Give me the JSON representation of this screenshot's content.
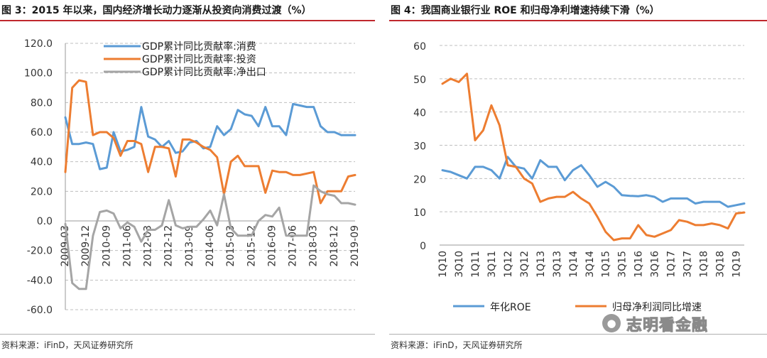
{
  "left": {
    "title": "图 3：2015 年以来，国内经济增长动力逐渐从投资向消费过渡（%）",
    "source": "资料来源：iFinD，天风证券研究所"
  },
  "right": {
    "title": "图 4：我国商业银行业 ROE 和归母净利增速持续下滑（%）",
    "source": "资料来源：iFinD，天风证券研究所"
  },
  "watermark": {
    "icon": "wechat-icon",
    "text": "志明看金融"
  },
  "colors": {
    "blue": "#5b9bd5",
    "orange": "#ed7d31",
    "gray": "#a5a5a5",
    "grid": "#bfbfbf",
    "title_rule": "#c0272d"
  },
  "chart_data": [
    {
      "type": "line",
      "ylim": [
        -60,
        120
      ],
      "yticks": [
        "120.0",
        "100.0",
        "80.0",
        "60.0",
        "40.0",
        "20.0",
        "0.0",
        "-20.0",
        "-40.0",
        "-60.0"
      ],
      "xtick_labels": [
        "2009-03",
        "2009-12",
        "2010-09",
        "2011-06",
        "2012-03",
        "2012-12",
        "2013-09",
        "2014-06",
        "2015-03",
        "2015-12",
        "2016-09",
        "2017-06",
        "2018-03",
        "2018-12",
        "2019-09"
      ],
      "legend_position": "top",
      "grid": "horizontal dashed",
      "x_count": 43,
      "series": [
        {
          "name": "GDP累计同比贡献率:消费",
          "color": "#5b9bd5",
          "values": [
            70,
            52,
            52,
            53,
            52,
            35,
            36,
            60,
            47,
            48,
            50,
            77,
            57,
            55,
            50,
            54,
            46,
            47,
            53,
            54,
            49,
            50,
            64,
            58,
            62,
            75,
            72,
            71,
            64,
            77,
            64,
            64,
            58,
            79,
            78,
            77,
            77,
            64,
            60,
            60,
            58,
            58,
            58
          ]
        },
        {
          "name": "GDP累计同比贡献率:投资",
          "color": "#ed7d31",
          "values": [
            33,
            90,
            95,
            94,
            58,
            60,
            60,
            56,
            44,
            54,
            54,
            52,
            33,
            50,
            50,
            49,
            30,
            55,
            55,
            53,
            50,
            48,
            43,
            18,
            40,
            44,
            37,
            37,
            37,
            19,
            34,
            33,
            33,
            31,
            31,
            32,
            33,
            12,
            20,
            20,
            20,
            30,
            31
          ]
        },
        {
          "name": "GDP累计同比贡献率:净出口",
          "color": "#a5a5a5",
          "values": [
            -2,
            -42,
            -46,
            -46,
            -10,
            6,
            7,
            5,
            -5,
            -1,
            -4,
            -14,
            -6,
            -6,
            -3,
            14,
            -3,
            -5,
            -4,
            -4,
            1,
            7,
            -3,
            18,
            -5,
            -10,
            -10,
            -10,
            0,
            4,
            3,
            9,
            -10,
            -10,
            -10,
            -10,
            24,
            20,
            18,
            17,
            12,
            12,
            11
          ]
        }
      ]
    },
    {
      "type": "line",
      "ylim": [
        0,
        60
      ],
      "yticks": [
        "60",
        "50",
        "40",
        "30",
        "20",
        "10",
        "0"
      ],
      "xtick_labels": [
        "1Q10",
        "3Q10",
        "1Q11",
        "3Q11",
        "1Q12",
        "3Q12",
        "1Q13",
        "3Q13",
        "1Q14",
        "3Q14",
        "1Q15",
        "3Q15",
        "1Q16",
        "3Q16",
        "1Q17",
        "3Q17",
        "1Q18",
        "3Q18",
        "1Q19"
      ],
      "legend_position": "bottom",
      "grid": "horizontal dashed",
      "series": [
        {
          "name": "年化ROE",
          "color": "#5b9bd5",
          "values": [
            22.5,
            22.0,
            21.0,
            20.0,
            23.5,
            23.5,
            22.5,
            20.0,
            26.5,
            23.5,
            23.0,
            20.0,
            25.5,
            23.5,
            23.5,
            19.5,
            22.5,
            24.0,
            21.0,
            17.5,
            19.0,
            17.5,
            15.0,
            14.8,
            14.7,
            15.0,
            14.5,
            13.0,
            14.0,
            14.0,
            14.0,
            12.5,
            13.0,
            13.0,
            13.0,
            11.5,
            12.0,
            12.5
          ]
        },
        {
          "name": "归母净利润同比增速",
          "color": "#ed7d31",
          "values": [
            48.5,
            50.0,
            49.0,
            51.5,
            31.5,
            34.5,
            42.0,
            36.0,
            24.0,
            23.5,
            20.0,
            18.5,
            13.0,
            14.0,
            14.5,
            14.5,
            16.0,
            14.0,
            12.5,
            8.5,
            4.0,
            1.5,
            2.0,
            2.0,
            6.0,
            3.0,
            2.5,
            3.5,
            4.5,
            7.5,
            7.0,
            6.0,
            6.0,
            6.5,
            6.0,
            5.0,
            9.5,
            9.8
          ]
        }
      ]
    }
  ]
}
